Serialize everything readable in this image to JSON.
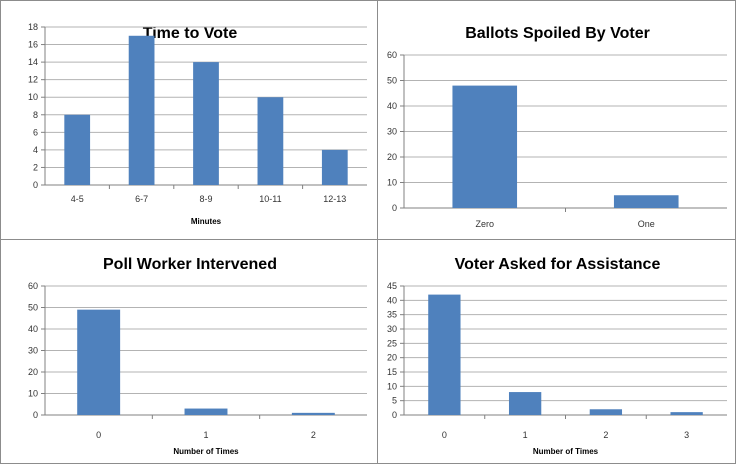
{
  "chart_data": [
    {
      "type": "bar",
      "title": "Time to Vote",
      "xlabel": "Minutes",
      "ylabel": "",
      "categories": [
        "4-5",
        "6-7",
        "8-9",
        "10-11",
        "12-13"
      ],
      "values": [
        8,
        17,
        14,
        10,
        4
      ],
      "ylim": [
        0,
        18
      ],
      "yticks": [
        "0",
        "2",
        "4",
        "6",
        "8",
        "10",
        "12",
        "14",
        "16",
        "18"
      ],
      "grid": true,
      "color": "#4F81BD"
    },
    {
      "type": "bar",
      "title": "Ballots Spoiled By Voter",
      "xlabel": "",
      "ylabel": "",
      "categories": [
        "Zero",
        "One"
      ],
      "values": [
        48,
        5
      ],
      "ylim": [
        0,
        60
      ],
      "yticks": [
        "0",
        "10",
        "20",
        "30",
        "40",
        "50",
        "60"
      ],
      "grid": true,
      "color": "#4F81BD"
    },
    {
      "type": "bar",
      "title": "Poll Worker Intervened",
      "xlabel": "Number of Times",
      "ylabel": "",
      "categories": [
        "0",
        "1",
        "2"
      ],
      "values": [
        49,
        3,
        1
      ],
      "ylim": [
        0,
        60
      ],
      "yticks": [
        "0",
        "10",
        "20",
        "30",
        "40",
        "50",
        "60"
      ],
      "grid": true,
      "color": "#4F81BD"
    },
    {
      "type": "bar",
      "title": "Voter Asked for Assistance",
      "xlabel": "Number of Times",
      "ylabel": "",
      "categories": [
        "0",
        "1",
        "2",
        "3"
      ],
      "values": [
        42,
        8,
        2,
        1
      ],
      "ylim": [
        0,
        45
      ],
      "yticks": [
        "0",
        "5",
        "10",
        "15",
        "20",
        "25",
        "30",
        "35",
        "40",
        "45"
      ],
      "grid": true,
      "color": "#4F81BD"
    }
  ]
}
